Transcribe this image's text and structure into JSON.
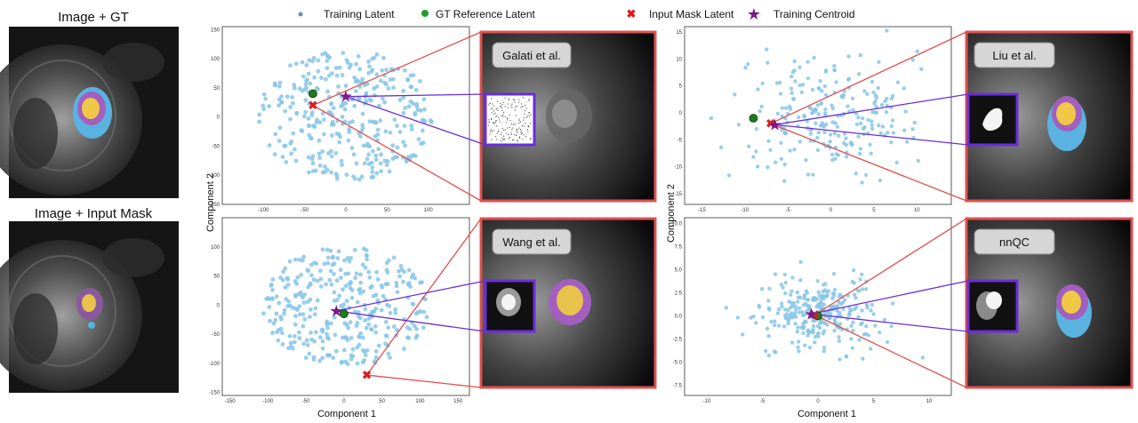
{
  "legend": {
    "training": "Training Latent",
    "gt": "GT Reference Latent",
    "mask": "Input Mask Latent",
    "centroid": "Training Centroid"
  },
  "left_titles": {
    "top": "Image + GT",
    "bottom": "Image + Input Mask"
  },
  "axis_labels": {
    "left_x": "Component 1",
    "left_y": "Component 2",
    "right_x": "Component 1",
    "right_y": "Component 2"
  },
  "colors": {
    "training": "#87c6e6",
    "gt": "#1f7a1f",
    "mask": "#d62020",
    "centroid": "#7a1a86",
    "callout_red": "#e05050",
    "callout_purple": "#6a2ed8"
  },
  "chart_data": [
    {
      "type": "scatter",
      "method": "Galati et al.",
      "xlim": [
        -150,
        150
      ],
      "ylim": [
        -150,
        155
      ],
      "xticks": [
        "-100",
        "-50",
        "0",
        "50",
        "100"
      ],
      "yticks": [
        "150",
        "100",
        "50",
        "0",
        "-50",
        "-100",
        "-150"
      ],
      "n_training": 330,
      "spread": [
        105,
        110
      ],
      "gt": [
        -40,
        40
      ],
      "mask": [
        -40,
        20
      ],
      "centroid": [
        0,
        35
      ]
    },
    {
      "type": "scatter",
      "method": "Wang et al.",
      "xlim": [
        -160,
        165
      ],
      "ylim": [
        -155,
        150
      ],
      "xticks": [
        "-150",
        "-100",
        "-50",
        "0",
        "50",
        "100",
        "150"
      ],
      "yticks": [
        "100",
        "50",
        "0",
        "-50",
        "-100",
        "-150"
      ],
      "n_training": 330,
      "spread": [
        110,
        100
      ],
      "gt": [
        0,
        -15
      ],
      "mask": [
        30,
        -120
      ],
      "centroid": [
        -10,
        -10
      ]
    },
    {
      "type": "scatter",
      "method": "Liu et al.",
      "xlim": [
        -17,
        14
      ],
      "ylim": [
        -17,
        16
      ],
      "xticks": [
        "-15",
        "-10",
        "-5",
        "0",
        "5",
        "10"
      ],
      "yticks": [
        "15",
        "10",
        "5",
        "0",
        "-5",
        "-10",
        "-15"
      ],
      "n_training": 230,
      "spread": [
        9,
        10
      ],
      "gt": [
        -9,
        -1
      ],
      "mask": [
        -7,
        -2
      ],
      "centroid": [
        -6.5,
        -2.2
      ]
    },
    {
      "type": "scatter",
      "method": "nnQC",
      "xlim": [
        -12,
        12
      ],
      "ylim": [
        -8.6,
        10.6
      ],
      "xticks": [
        "-10",
        "-5",
        "0",
        "5",
        "10"
      ],
      "yticks": [
        "10.0",
        "7.5",
        "5.0",
        "2.5",
        "0.0",
        "-2.5",
        "-5.0",
        "-7.5"
      ],
      "n_training": 280,
      "spread": [
        5,
        3.5
      ],
      "gt": [
        0,
        0
      ],
      "mask": [
        -0.3,
        0.1
      ],
      "centroid": [
        -0.6,
        0.2
      ]
    }
  ]
}
